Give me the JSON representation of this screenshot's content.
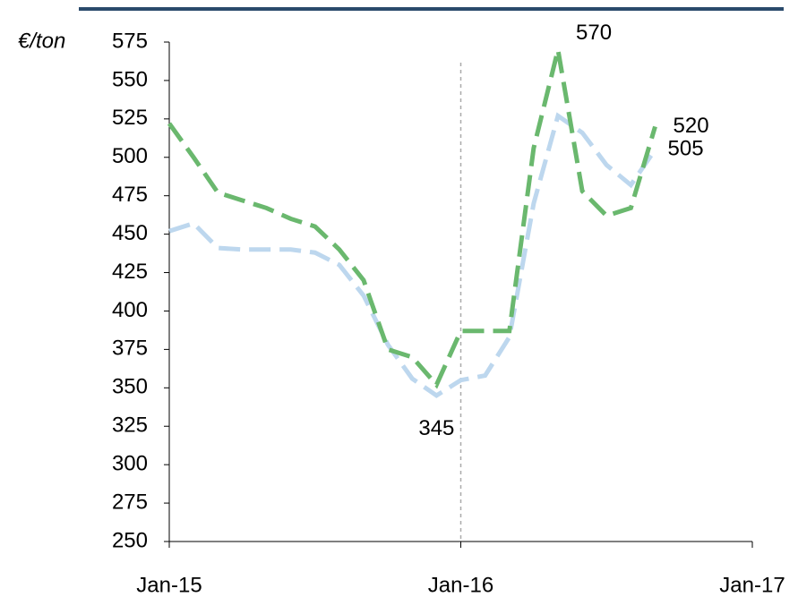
{
  "chart_data": {
    "type": "line",
    "y_label": "€/ton",
    "x": [
      "2015-01",
      "2015-02",
      "2015-03",
      "2015-04",
      "2015-05",
      "2015-06",
      "2015-07",
      "2015-08",
      "2015-09",
      "2015-10",
      "2015-11",
      "2015-12",
      "2016-01",
      "2016-02",
      "2016-03",
      "2016-04",
      "2016-05",
      "2016-06",
      "2016-07",
      "2016-08",
      "2016-09"
    ],
    "series": [
      {
        "color": "#6ab86e",
        "values": [
          522,
          500,
          477,
          472,
          467,
          460,
          455,
          440,
          420,
          375,
          370,
          352,
          387,
          387,
          387,
          506,
          570,
          478,
          462,
          467,
          520
        ]
      },
      {
        "color": "#bdd7ee",
        "values": [
          452,
          457,
          441,
          440,
          440,
          440,
          438,
          430,
          410,
          378,
          356,
          345,
          355,
          358,
          383,
          470,
          527,
          516,
          495,
          482,
          505
        ]
      }
    ],
    "xlim": [
      "2015-01",
      "2017-01"
    ],
    "xticks": [
      {
        "value": "2015-01",
        "label": "Jan-15"
      },
      {
        "value": "2016-01",
        "label": "Jan-16"
      },
      {
        "value": "2017-01",
        "label": "Jan-17"
      }
    ],
    "ylim": [
      250,
      575
    ],
    "yticks": [
      250,
      275,
      300,
      325,
      350,
      375,
      400,
      425,
      450,
      475,
      500,
      525,
      550,
      575
    ]
  }
}
